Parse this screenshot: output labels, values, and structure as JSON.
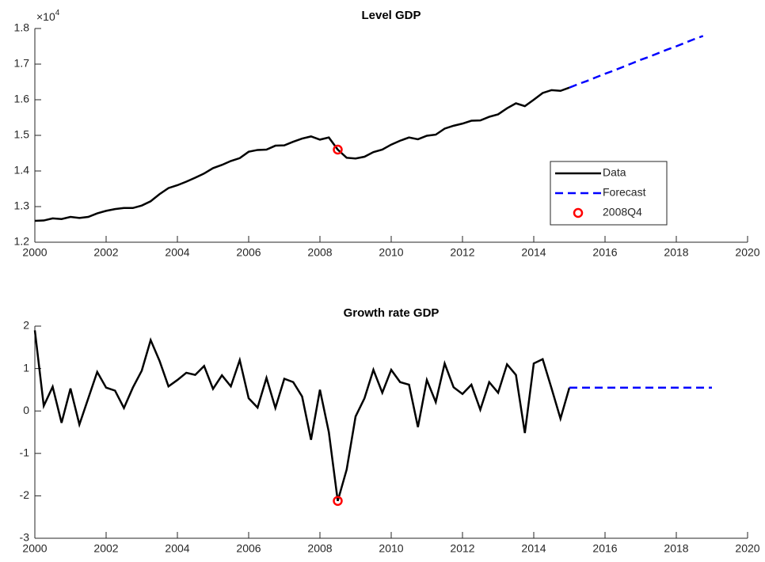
{
  "chart_data": [
    {
      "type": "line",
      "title": "Level GDP",
      "y_exponent": {
        "base": "×10",
        "power": 4
      },
      "xlim": [
        2000,
        2020
      ],
      "xticks": [
        2000,
        2002,
        2004,
        2006,
        2008,
        2010,
        2012,
        2014,
        2016,
        2018,
        2020
      ],
      "ylim": [
        1.2,
        1.8
      ],
      "yticks": [
        1.2,
        1.3,
        1.4,
        1.5,
        1.6,
        1.7,
        1.8
      ],
      "legend": "southeast",
      "series": [
        {
          "name": "Data",
          "color": "#000000",
          "style": "solid",
          "x": [
            2000,
            2000.25,
            2000.5,
            2000.75,
            2001,
            2001.25,
            2001.5,
            2001.75,
            2002,
            2002.25,
            2002.5,
            2002.75,
            2003,
            2003.25,
            2003.5,
            2003.75,
            2004,
            2004.25,
            2004.5,
            2004.75,
            2005,
            2005.25,
            2005.5,
            2005.75,
            2006,
            2006.25,
            2006.5,
            2006.75,
            2007,
            2007.25,
            2007.5,
            2007.75,
            2008,
            2008.25,
            2008.5,
            2008.75,
            2009,
            2009.25,
            2009.5,
            2009.75,
            2010,
            2010.25,
            2010.5,
            2010.75,
            2011,
            2011.25,
            2011.5,
            2011.75,
            2012,
            2012.25,
            2012.5,
            2012.75,
            2013,
            2013.25,
            2013.5,
            2013.75,
            2014,
            2014.25,
            2014.5,
            2014.75,
            2015
          ],
          "values": [
            1.26,
            1.261,
            1.267,
            1.265,
            1.271,
            1.268,
            1.271,
            1.281,
            1.288,
            1.293,
            1.296,
            1.296,
            1.303,
            1.315,
            1.335,
            1.352,
            1.36,
            1.37,
            1.381,
            1.393,
            1.408,
            1.417,
            1.428,
            1.436,
            1.454,
            1.459,
            1.46,
            1.471,
            1.472,
            1.482,
            1.491,
            1.497,
            1.488,
            1.494,
            1.46,
            1.437,
            1.435,
            1.44,
            1.453,
            1.46,
            1.474,
            1.485,
            1.494,
            1.489,
            1.499,
            1.502,
            1.519,
            1.527,
            1.533,
            1.541,
            1.542,
            1.552,
            1.559,
            1.576,
            1.59,
            1.582,
            1.6,
            1.619,
            1.627,
            1.625,
            1.634
          ]
        },
        {
          "name": "Forecast",
          "color": "#0000ff",
          "style": "dashed",
          "x": [
            2015,
            2015.25,
            2015.5,
            2015.75,
            2016,
            2016.25,
            2016.5,
            2016.75,
            2017,
            2017.25,
            2017.5,
            2017.75,
            2018,
            2018.25,
            2018.5,
            2018.75
          ],
          "values": [
            1.634,
            1.644,
            1.653,
            1.663,
            1.673,
            1.682,
            1.692,
            1.702,
            1.712,
            1.721,
            1.731,
            1.741,
            1.75,
            1.76,
            1.77,
            1.779
          ]
        },
        {
          "name": "2008Q4",
          "color": "#ff0000",
          "style": "marker",
          "x": [
            2008.5
          ],
          "values": [
            1.46
          ]
        }
      ]
    },
    {
      "type": "line",
      "title": "Growth rate GDP",
      "xlim": [
        2000,
        2020
      ],
      "xticks": [
        2000,
        2002,
        2004,
        2006,
        2008,
        2010,
        2012,
        2014,
        2016,
        2018,
        2020
      ],
      "ylim": [
        -3,
        2
      ],
      "yticks": [
        -3,
        -2,
        -1,
        0,
        1,
        2
      ],
      "series": [
        {
          "color": "#000000",
          "style": "solid",
          "x": [
            2000,
            2000.25,
            2000.5,
            2000.75,
            2001,
            2001.25,
            2001.5,
            2001.75,
            2002,
            2002.25,
            2002.5,
            2002.75,
            2003,
            2003.25,
            2003.5,
            2003.75,
            2004,
            2004.25,
            2004.5,
            2004.75,
            2005,
            2005.25,
            2005.5,
            2005.75,
            2006,
            2006.25,
            2006.5,
            2006.75,
            2007,
            2007.25,
            2007.5,
            2007.75,
            2008,
            2008.25,
            2008.5,
            2008.75,
            2009,
            2009.25,
            2009.5,
            2009.75,
            2010,
            2010.25,
            2010.5,
            2010.75,
            2011,
            2011.25,
            2011.5,
            2011.75,
            2012,
            2012.25,
            2012.5,
            2012.75,
            2013,
            2013.25,
            2013.5,
            2013.75,
            2014,
            2014.25,
            2014.5,
            2014.75,
            2015
          ],
          "values": [
            1.9,
            0.12,
            0.57,
            -0.28,
            0.53,
            -0.32,
            0.3,
            0.92,
            0.55,
            0.48,
            0.07,
            0.55,
            0.95,
            1.67,
            1.18,
            0.58,
            0.73,
            0.9,
            0.85,
            1.06,
            0.52,
            0.84,
            0.58,
            1.2,
            0.3,
            0.08,
            0.78,
            0.07,
            0.76,
            0.68,
            0.34,
            -0.68,
            0.5,
            -0.5,
            -2.12,
            -1.38,
            -0.13,
            0.3,
            0.97,
            0.43,
            0.97,
            0.68,
            0.62,
            -0.38,
            0.73,
            0.21,
            1.12,
            0.56,
            0.4,
            0.62,
            0.03,
            0.68,
            0.43,
            1.1,
            0.85,
            -0.52,
            1.12,
            1.22,
            0.53,
            -0.18,
            0.55
          ]
        },
        {
          "color": "#0000ff",
          "style": "dashed",
          "x": [
            2015,
            2019
          ],
          "values": [
            0.55,
            0.55
          ]
        },
        {
          "color": "#ff0000",
          "style": "marker",
          "x": [
            2008.5
          ],
          "values": [
            -2.12
          ]
        }
      ]
    }
  ]
}
